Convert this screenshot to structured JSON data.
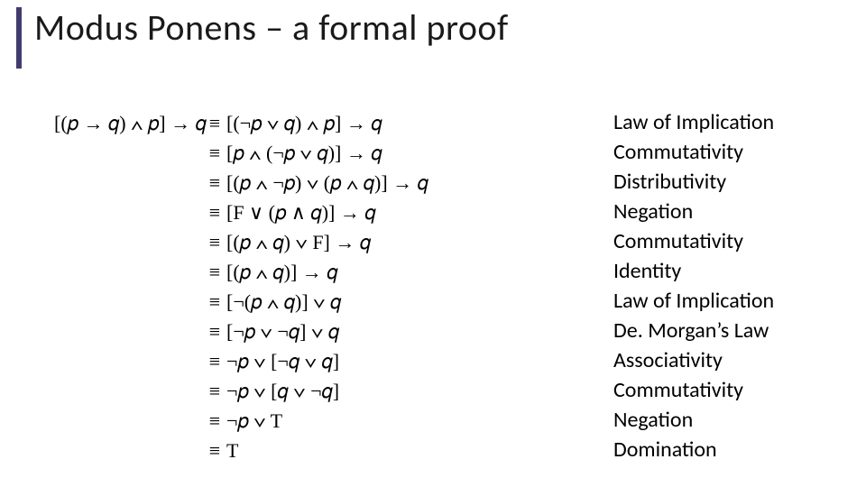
{
  "title": "Modus Ponens – a formal proof",
  "accent_color": "#413c6f",
  "rows": [
    {
      "left": "[(𝑝 → 𝑞) ∧ 𝑝] → 𝑞",
      "mid": "≡",
      "right": "[(¬𝑝 ∨ 𝑞) ∧ 𝑝] → 𝑞",
      "just": "Law of Implication"
    },
    {
      "left": "",
      "mid": "≡",
      "right": "[𝑝 ∧ (¬𝑝 ∨ 𝑞)] → 𝑞",
      "just": "Commutativity"
    },
    {
      "left": "",
      "mid": "≡",
      "right": "[(𝑝 ∧ ¬𝑝) ∨ (𝑝 ∧ 𝑞)] → 𝑞",
      "just": "Distributivity"
    },
    {
      "left": "",
      "mid": "≡",
      "right": "[F ∨ (𝑝 ∧ 𝑞)] → 𝑞",
      "just": "Negation"
    },
    {
      "left": "",
      "mid": "≡",
      "right": "[(𝑝 ∧ 𝑞) ∨ F] → 𝑞",
      "just": "Commutativity"
    },
    {
      "left": "",
      "mid": "≡",
      "right": "[(𝑝 ∧ 𝑞)] → 𝑞",
      "just": "Identity"
    },
    {
      "left": "",
      "mid": "≡",
      "right": "[¬(𝑝 ∧ 𝑞)] ∨ 𝑞",
      "just": "Law of Implication"
    },
    {
      "left": "",
      "mid": "≡",
      "right": "[¬𝑝 ∨ ¬𝑞] ∨ 𝑞",
      "just": "De. Morgan’s Law"
    },
    {
      "left": "",
      "mid": "≡",
      "right": "¬𝑝 ∨ [¬𝑞 ∨ 𝑞]",
      "just": "Associativity"
    },
    {
      "left": "",
      "mid": "≡",
      "right": "¬𝑝 ∨ [𝑞 ∨ ¬𝑞]",
      "just": "Commutativity"
    },
    {
      "left": "",
      "mid": "≡",
      "right": "¬𝑝 ∨ T",
      "just": "Negation"
    },
    {
      "left": "",
      "mid": "≡",
      "right": "T",
      "just": "Domination"
    }
  ]
}
